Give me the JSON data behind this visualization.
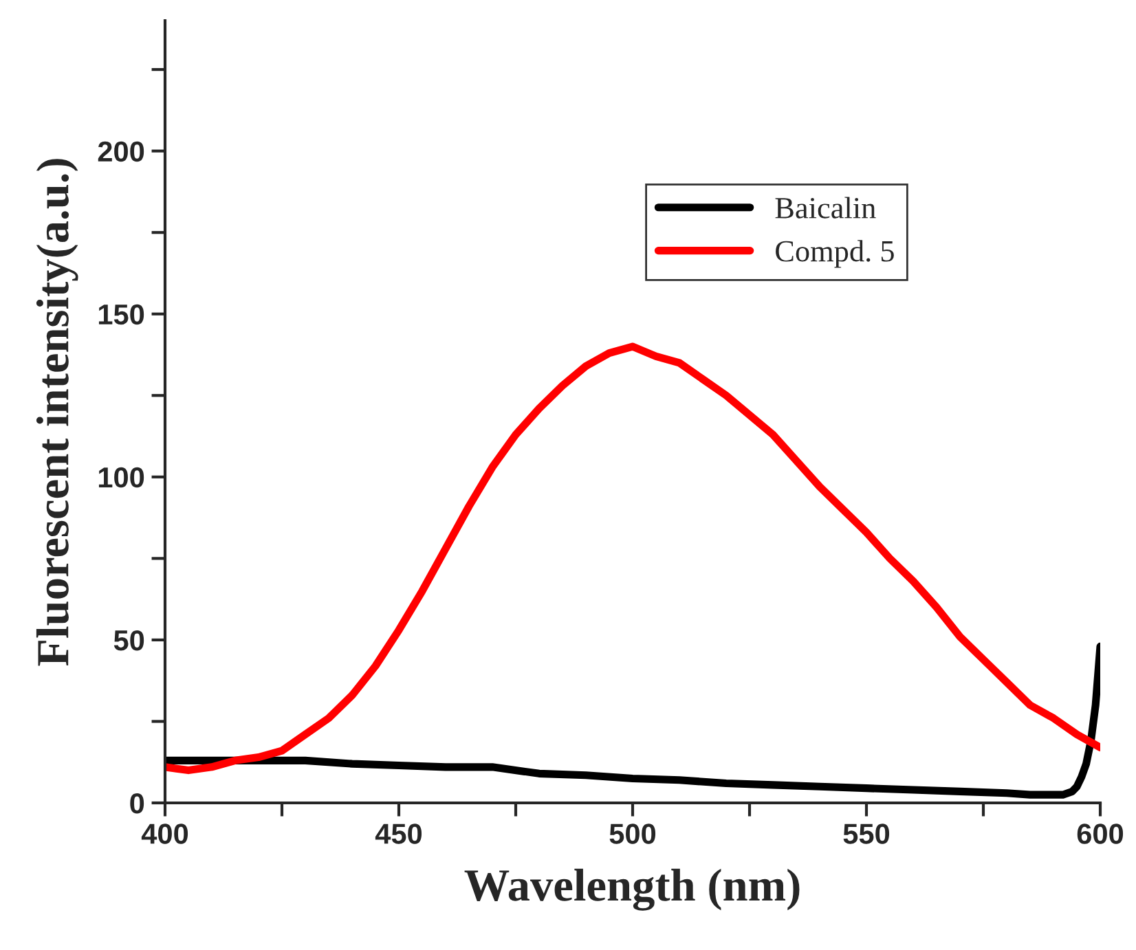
{
  "chart_data": {
    "type": "line",
    "xlabel": "Wavelength (nm)",
    "ylabel": "Fluorescent intensity(a.u.)",
    "xlim": [
      400,
      600
    ],
    "ylim": [
      0,
      240
    ],
    "xticks": [
      400,
      {
        "value": 425,
        "label": null
      },
      450,
      {
        "value": 475,
        "label": null
      },
      500,
      {
        "value": 525,
        "label": null
      },
      550,
      {
        "value": 575,
        "label": null
      },
      600
    ],
    "yticks": [
      0,
      {
        "value": 25,
        "label": null
      },
      50,
      {
        "value": 75,
        "label": null
      },
      100,
      {
        "value": 125,
        "label": null
      },
      150,
      {
        "value": 175,
        "label": null
      },
      200,
      {
        "value": 225,
        "label": null
      }
    ],
    "grid": false,
    "legend": "top right",
    "marker": "none",
    "line_style": "solid",
    "series": [
      {
        "name": "Baicalin",
        "color": "#000000",
        "x": [
          400,
          410,
          420,
          430,
          440,
          450,
          460,
          470,
          480,
          490,
          500,
          510,
          520,
          530,
          540,
          550,
          560,
          570,
          580,
          585,
          590,
          592,
          594,
          595,
          596,
          597,
          598,
          599,
          600
        ],
        "values": [
          13,
          13,
          13,
          13,
          12,
          11.5,
          11,
          11,
          9,
          8.5,
          7.5,
          7,
          6,
          5.5,
          5,
          4.5,
          4,
          3.5,
          3,
          2.5,
          2.5,
          2.5,
          3.5,
          5,
          8,
          12,
          19,
          30,
          48
        ]
      },
      {
        "name": "Compd. 5",
        "color": "#ff0000",
        "x": [
          400,
          405,
          410,
          415,
          420,
          425,
          430,
          435,
          440,
          445,
          450,
          455,
          460,
          465,
          470,
          475,
          480,
          485,
          490,
          495,
          500,
          505,
          510,
          515,
          520,
          525,
          530,
          535,
          540,
          545,
          550,
          555,
          560,
          565,
          570,
          575,
          580,
          585,
          590,
          595,
          600
        ],
        "values": [
          11,
          10,
          11,
          13,
          14,
          16,
          21,
          26,
          33,
          42,
          53,
          65,
          78,
          91,
          103,
          113,
          121,
          128,
          134,
          138,
          140,
          137,
          135,
          130,
          125,
          119,
          113,
          105,
          97,
          90,
          83,
          75,
          68,
          60,
          51,
          44,
          37,
          30,
          26,
          21,
          17
        ]
      }
    ]
  }
}
